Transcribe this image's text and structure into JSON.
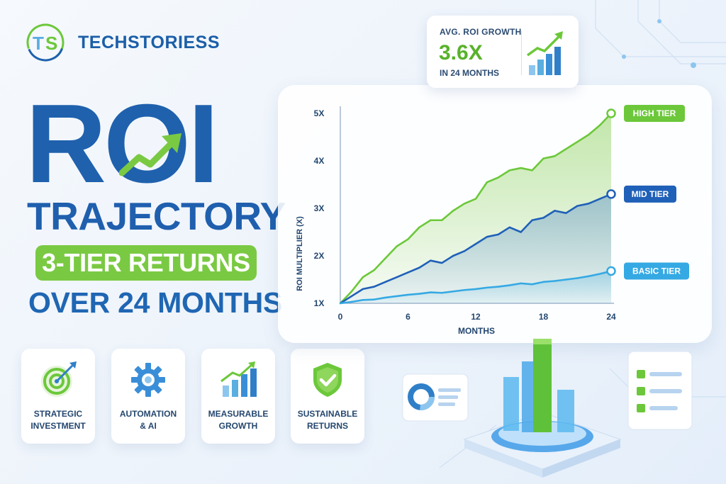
{
  "brand": {
    "name": "TECHSTORIESS",
    "logo_letters": "TS"
  },
  "title": {
    "main": "ROI",
    "line2": "TRAJECTORY",
    "pill": "3-TIER RETURNS",
    "line4": "OVER 24 MONTHS"
  },
  "stat": {
    "label": "AVG. ROI GROWTH",
    "value": "3.6X",
    "sub": "IN 24 MONTHS",
    "icon": "bar-growth-icon"
  },
  "features": [
    {
      "label": "STRATEGIC\nINVESTMENT",
      "icon": "target-icon"
    },
    {
      "label": "AUTOMATION\n& AI",
      "icon": "gear-icon"
    },
    {
      "label": "MEASURABLE\nGROWTH",
      "icon": "bar-chart-icon"
    },
    {
      "label": "SUSTAINABLE\nRETURNS",
      "icon": "shield-check-icon"
    }
  ],
  "colors": {
    "brand_blue": "#1f61ad",
    "brand_green": "#7ac943",
    "high": "#6cc83a",
    "mid": "#1f60b8",
    "basic": "#35a9e3"
  },
  "chart_data": {
    "type": "area",
    "title": "",
    "xlabel": "MONTHS",
    "ylabel": "ROI MULTIPLIER (X)",
    "xlim": [
      0,
      24
    ],
    "ylim": [
      1,
      5
    ],
    "x_ticks": [
      0,
      6,
      12,
      18,
      24
    ],
    "y_ticks": [
      "1X",
      "2X",
      "3X",
      "4X",
      "5X"
    ],
    "y_tick_values": [
      1,
      2,
      3,
      4,
      5
    ],
    "grid": false,
    "legend": "end-of-line labels",
    "x": [
      0,
      1,
      2,
      3,
      4,
      5,
      6,
      7,
      8,
      9,
      10,
      11,
      12,
      13,
      14,
      15,
      16,
      17,
      18,
      19,
      20,
      21,
      22,
      23,
      24
    ],
    "series": [
      {
        "name": "HIGH TIER",
        "color": "#6cc83a",
        "values": [
          1.0,
          1.25,
          1.55,
          1.7,
          1.95,
          2.2,
          2.35,
          2.6,
          2.75,
          2.75,
          2.95,
          3.1,
          3.2,
          3.55,
          3.65,
          3.8,
          3.85,
          3.8,
          4.05,
          4.1,
          4.25,
          4.4,
          4.55,
          4.75,
          5.0
        ]
      },
      {
        "name": "MID TIER",
        "color": "#1f60b8",
        "values": [
          1.0,
          1.15,
          1.3,
          1.35,
          1.45,
          1.55,
          1.65,
          1.75,
          1.9,
          1.85,
          2.0,
          2.1,
          2.25,
          2.4,
          2.45,
          2.6,
          2.5,
          2.75,
          2.8,
          2.95,
          2.9,
          3.05,
          3.1,
          3.2,
          3.3
        ]
      },
      {
        "name": "BASIC TIER",
        "color": "#35a9e3",
        "values": [
          1.0,
          1.03,
          1.07,
          1.08,
          1.12,
          1.15,
          1.18,
          1.2,
          1.23,
          1.22,
          1.25,
          1.28,
          1.3,
          1.33,
          1.35,
          1.38,
          1.42,
          1.4,
          1.45,
          1.47,
          1.5,
          1.53,
          1.57,
          1.62,
          1.68
        ]
      }
    ]
  }
}
